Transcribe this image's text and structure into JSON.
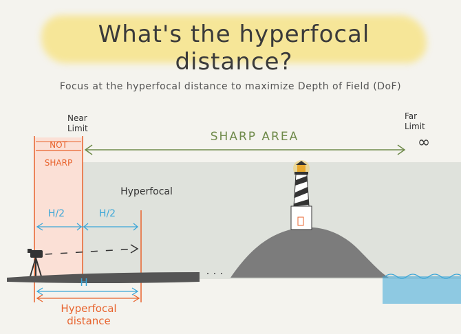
{
  "title": "What's the hyperfocal distance?",
  "subtitle": "Focus at the hyperfocal distance to maximize Depth of Field (DoF)",
  "labels": {
    "near_limit_line1": "Near",
    "near_limit_line2": "Limit",
    "far_limit_line1": "Far",
    "far_limit_line2": "Limit",
    "infinity": "∞",
    "not": "NOT",
    "sharp": "SHARP",
    "sharp_area": "SHARP AREA",
    "hyperfocal": "Hyperfocal",
    "h_half_left": "H/2",
    "h_half_right": "H/2",
    "h": "H",
    "hyperfocal_distance_line1": "Hyperfocal",
    "hyperfocal_distance_line2": "distance"
  },
  "colors": {
    "highlight": "#f7e48a",
    "not_sharp_fill": "#fbe0d6",
    "sharp_fill": "#dfe2dc",
    "orange": "#e8632d",
    "blue": "#3aa6d8",
    "green": "#6f8a4a",
    "ground": "#555555",
    "hill": "#7c7c7c",
    "water": "#3aa6d8"
  }
}
